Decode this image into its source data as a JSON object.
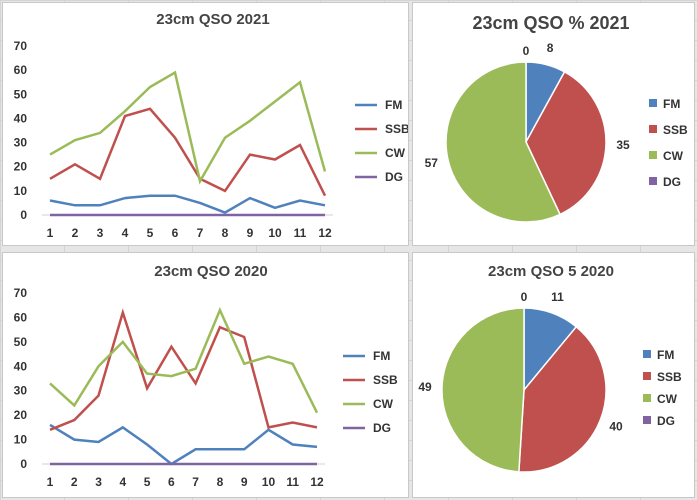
{
  "palette": {
    "FM": "#4f81bd",
    "SSB": "#c0504d",
    "CW": "#9bbb59",
    "DG": "#8064a2"
  },
  "chart_data": [
    {
      "type": "line",
      "title": "23cm QSO 2021",
      "x": [
        "1",
        "2",
        "3",
        "4",
        "5",
        "6",
        "7",
        "8",
        "9",
        "10",
        "11",
        "12"
      ],
      "ylim": [
        0,
        70
      ],
      "yticks": [
        0,
        10,
        20,
        30,
        40,
        50,
        60,
        70
      ],
      "grid": false,
      "legend_position": "right",
      "series": [
        {
          "name": "FM",
          "values": [
            6,
            4,
            4,
            7,
            8,
            8,
            5,
            1,
            7,
            3,
            6,
            4
          ]
        },
        {
          "name": "SSB",
          "values": [
            15,
            21,
            15,
            41,
            44,
            32,
            15,
            10,
            25,
            23,
            29,
            8
          ]
        },
        {
          "name": "CW",
          "values": [
            25,
            31,
            34,
            43,
            53,
            59,
            14,
            32,
            39,
            47,
            55,
            18
          ]
        },
        {
          "name": "DG",
          "values": [
            0,
            0,
            0,
            0,
            0,
            0,
            0,
            0,
            0,
            0,
            0,
            0
          ]
        }
      ]
    },
    {
      "type": "pie",
      "title": "23cm QSO % 2021",
      "categories": [
        "FM",
        "SSB",
        "CW",
        "DG"
      ],
      "values": [
        8,
        35,
        57,
        0
      ],
      "legend_position": "right"
    },
    {
      "type": "line",
      "title": "23cm QSO 2020",
      "x": [
        "1",
        "2",
        "3",
        "4",
        "5",
        "6",
        "7",
        "8",
        "9",
        "10",
        "11",
        "12"
      ],
      "ylim": [
        0,
        70
      ],
      "yticks": [
        0,
        10,
        20,
        30,
        40,
        50,
        60,
        70
      ],
      "grid": false,
      "legend_position": "right",
      "series": [
        {
          "name": "FM",
          "values": [
            16,
            10,
            9,
            15,
            8,
            0,
            6,
            6,
            6,
            14,
            8,
            7
          ]
        },
        {
          "name": "SSB",
          "values": [
            14,
            18,
            28,
            62,
            31,
            48,
            33,
            56,
            52,
            15,
            17,
            15
          ]
        },
        {
          "name": "CW",
          "values": [
            33,
            24,
            40,
            50,
            37,
            36,
            39,
            63,
            41,
            44,
            41,
            21
          ]
        },
        {
          "name": "DG",
          "values": [
            0,
            0,
            0,
            0,
            0,
            0,
            0,
            0,
            0,
            0,
            0,
            0
          ]
        }
      ]
    },
    {
      "type": "pie",
      "title": "23cm QSO 5 2020",
      "categories": [
        "FM",
        "SSB",
        "CW",
        "DG"
      ],
      "values": [
        11,
        40,
        49,
        0
      ],
      "legend_position": "right"
    }
  ]
}
